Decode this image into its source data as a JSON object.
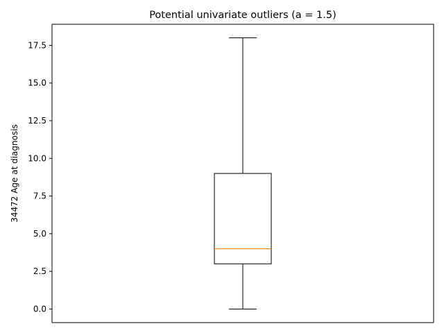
{
  "chart_data": {
    "type": "boxplot",
    "title": "Potential univariate outliers (a = 1.5)",
    "xlabel": "",
    "ylabel": "34472 Age at diagnosis",
    "ylim": [
      -0.9,
      18.9
    ],
    "yticks": [
      0.0,
      2.5,
      5.0,
      7.5,
      10.0,
      12.5,
      15.0,
      17.5
    ],
    "ytick_labels": [
      "0.0",
      "2.5",
      "5.0",
      "7.5",
      "10.0",
      "12.5",
      "15.0",
      "17.5"
    ],
    "grid": false,
    "box": {
      "whisker_low": 0,
      "q1": 3,
      "median": 4,
      "q3": 9,
      "whisker_high": 18
    },
    "colors": {
      "box": "#000000",
      "median": "#ff7f0e"
    }
  }
}
